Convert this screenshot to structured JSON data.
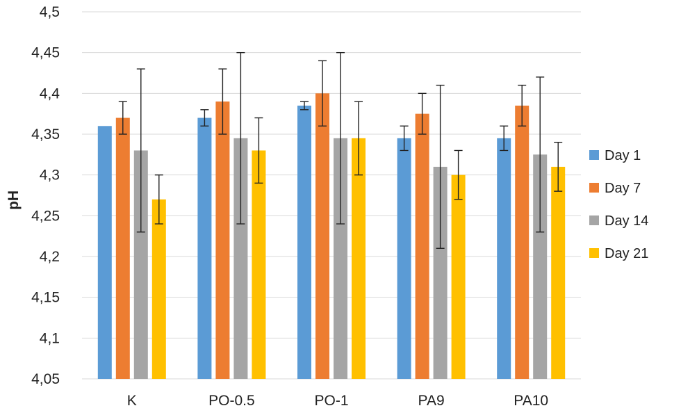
{
  "chart_data": {
    "type": "bar",
    "title": "",
    "xlabel": "",
    "ylabel": "pH",
    "ylim": [
      4.05,
      4.5
    ],
    "yticks": [
      "4,05",
      "4,1",
      "4,15",
      "4,2",
      "4,25",
      "4,3",
      "4,35",
      "4,4",
      "4,45",
      "4,5"
    ],
    "grid": true,
    "legend_position": "right",
    "categories": [
      "K",
      "PO-0.5",
      "PO-1",
      "PA9",
      "PA10"
    ],
    "series": [
      {
        "name": "Day 1",
        "color": "#5b9bd5",
        "values": [
          4.36,
          4.37,
          4.385,
          4.345,
          4.345
        ],
        "error_low": [
          null,
          4.36,
          4.38,
          4.33,
          4.33
        ],
        "error_high": [
          null,
          4.38,
          4.39,
          4.36,
          4.36
        ]
      },
      {
        "name": "Day 7",
        "color": "#ed7d31",
        "values": [
          4.37,
          4.39,
          4.4,
          4.375,
          4.385
        ],
        "error_low": [
          4.35,
          4.35,
          4.36,
          4.35,
          4.36
        ],
        "error_high": [
          4.39,
          4.43,
          4.44,
          4.4,
          4.41
        ]
      },
      {
        "name": "Day 14",
        "color": "#a5a5a5",
        "values": [
          4.33,
          4.345,
          4.345,
          4.31,
          4.325
        ],
        "error_low": [
          4.23,
          4.24,
          4.24,
          4.21,
          4.23
        ],
        "error_high": [
          4.43,
          4.45,
          4.45,
          4.41,
          4.42
        ]
      },
      {
        "name": "Day 21",
        "color": "#ffc000",
        "values": [
          4.27,
          4.33,
          4.345,
          4.3,
          4.31
        ],
        "error_low": [
          4.24,
          4.29,
          4.3,
          4.27,
          4.28
        ],
        "error_high": [
          4.3,
          4.37,
          4.39,
          4.33,
          4.34
        ]
      }
    ]
  }
}
